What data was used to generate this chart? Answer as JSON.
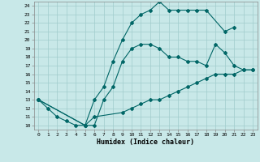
{
  "xlabel": "Humidex (Indice chaleur)",
  "xlim": [
    -0.5,
    23.5
  ],
  "ylim": [
    9.5,
    24.5
  ],
  "xticks": [
    0,
    1,
    2,
    3,
    4,
    5,
    6,
    7,
    8,
    9,
    10,
    11,
    12,
    13,
    14,
    15,
    16,
    17,
    18,
    19,
    20,
    21,
    22,
    23
  ],
  "yticks": [
    10,
    11,
    12,
    13,
    14,
    15,
    16,
    17,
    18,
    19,
    20,
    21,
    22,
    23,
    24
  ],
  "line_color": "#006666",
  "bg_color": "#c8e8e8",
  "grid_color": "#a0cccc",
  "lines": [
    {
      "x": [
        0,
        1,
        2,
        3,
        4,
        5,
        6,
        7,
        8,
        9,
        10,
        11,
        12,
        13,
        14,
        15,
        16,
        17,
        18,
        20,
        21
      ],
      "y": [
        13,
        12,
        11,
        10.5,
        10,
        10,
        13,
        14.5,
        17.5,
        20,
        22,
        23,
        23.5,
        24.5,
        23.5,
        23.5,
        23.5,
        23.5,
        23.5,
        21,
        21.5
      ]
    },
    {
      "x": [
        0,
        5,
        6,
        7,
        8,
        9,
        10,
        11,
        12,
        13,
        14,
        15,
        16,
        17,
        18,
        19,
        20,
        21,
        22,
        23
      ],
      "y": [
        13,
        10,
        10,
        13,
        14.5,
        17.5,
        19,
        19.5,
        19.5,
        19,
        18,
        18,
        17.5,
        17.5,
        17,
        19.5,
        18.5,
        17,
        16.5,
        16.5
      ]
    },
    {
      "x": [
        0,
        5,
        6,
        9,
        10,
        11,
        12,
        13,
        14,
        15,
        16,
        17,
        18,
        19,
        20,
        21,
        22,
        23
      ],
      "y": [
        13,
        10,
        11,
        11.5,
        12,
        12.5,
        13,
        13,
        13.5,
        14,
        14.5,
        15,
        15.5,
        16,
        16,
        16,
        16.5,
        16.5
      ]
    }
  ]
}
